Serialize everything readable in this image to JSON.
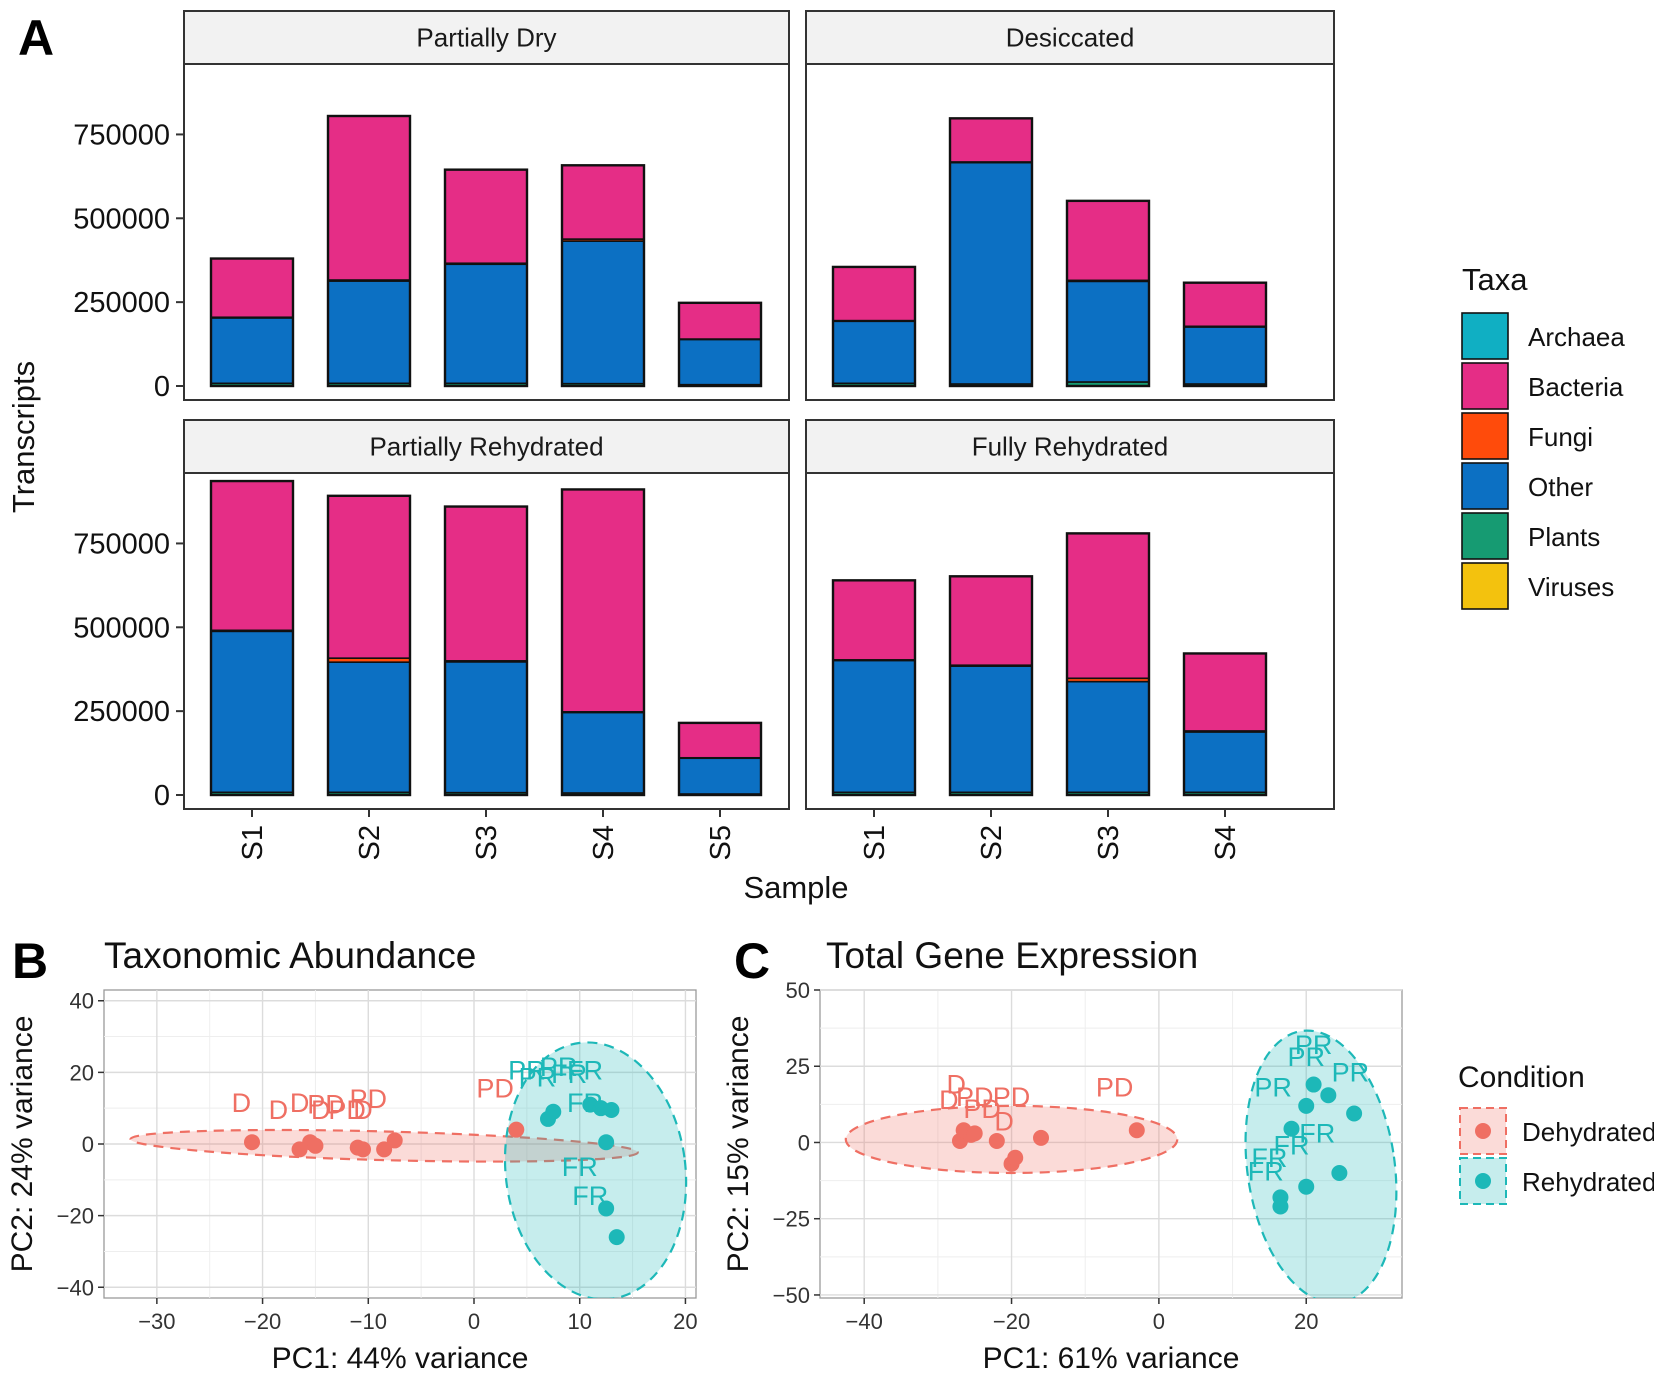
{
  "panel_labels": {
    "a": "A",
    "b": "B",
    "c": "C"
  },
  "taxa_colors": {
    "Archaea": "#10AFC3",
    "Bacteria": "#E52D86",
    "Fungi": "#FF4B0B",
    "Other": "#0C70C3",
    "Plants": "#169B72",
    "Viruses": "#F3C20E"
  },
  "condition_colors": {
    "Dehydrated": "#EF6F63",
    "Rehydrated": "#1DB8B8"
  },
  "chart_data": [
    {
      "id": "A",
      "type": "bar",
      "stacked": true,
      "ylabel": "Transcripts",
      "xlabel": "Sample",
      "ylim": [
        0,
        960000
      ],
      "yticks": [
        0,
        250000,
        500000,
        750000
      ],
      "ytick_labels": [
        "0",
        "250000",
        "500000",
        "750000"
      ],
      "legend": {
        "title": "Taxa",
        "position": "right",
        "entries": [
          "Archaea",
          "Bacteria",
          "Fungi",
          "Other",
          "Plants",
          "Viruses"
        ]
      },
      "facets": [
        {
          "title": "Partially Dry",
          "categories": [
            "S1",
            "S2",
            "S3",
            "S4",
            "S5"
          ],
          "series": [
            {
              "name": "Plants",
              "values": [
                8000,
                8000,
                8000,
                7000,
                4000
              ]
            },
            {
              "name": "Other",
              "values": [
                195000,
                305000,
                355000,
                425000,
                135000
              ]
            },
            {
              "name": "Fungi",
              "values": [
                2000,
                3000,
                3000,
                6000,
                1000
              ]
            },
            {
              "name": "Bacteria",
              "values": [
                175000,
                489000,
                279000,
                220000,
                108000
              ]
            }
          ]
        },
        {
          "title": "Desiccated",
          "categories": [
            "S1",
            "S2",
            "S3",
            "S4"
          ],
          "series": [
            {
              "name": "Plants",
              "values": [
                8000,
                6000,
                12000,
                6000
              ]
            },
            {
              "name": "Other",
              "values": [
                185000,
                660000,
                300000,
                170000
              ]
            },
            {
              "name": "Fungi",
              "values": [
                2000,
                2000,
                3000,
                2000
              ]
            },
            {
              "name": "Bacteria",
              "values": [
                160000,
                130000,
                237000,
                130000
              ]
            }
          ]
        },
        {
          "title": "Partially Rehydrated",
          "categories": [
            "S1",
            "S2",
            "S3",
            "S4",
            "S5"
          ],
          "series": [
            {
              "name": "Plants",
              "values": [
                8000,
                8000,
                7000,
                6000,
                3000
              ]
            },
            {
              "name": "Other",
              "values": [
                480000,
                388000,
                390000,
                240000,
                107000
              ]
            },
            {
              "name": "Fungi",
              "values": [
                3000,
                12000,
                3000,
                2000,
                1000
              ]
            },
            {
              "name": "Bacteria",
              "values": [
                445000,
                484000,
                460000,
                663000,
                104000
              ]
            }
          ]
        },
        {
          "title": "Fully Rehydrated",
          "categories": [
            "S1",
            "S2",
            "S3",
            "S4"
          ],
          "series": [
            {
              "name": "Plants",
              "values": [
                8000,
                8000,
                8000,
                8000
              ]
            },
            {
              "name": "Other",
              "values": [
                393000,
                376000,
                330000,
                180000
              ]
            },
            {
              "name": "Fungi",
              "values": [
                2000,
                3000,
                10000,
                3000
              ]
            },
            {
              "name": "Bacteria",
              "values": [
                237000,
                265000,
                432000,
                231000
              ]
            }
          ]
        }
      ]
    },
    {
      "id": "B",
      "type": "scatter",
      "title": "Taxonomic Abundance",
      "xlabel": "PC1: 44% variance",
      "ylabel": "PC2: 24% variance",
      "xlim": [
        -35,
        21
      ],
      "ylim": [
        -43,
        43
      ],
      "xticks": [
        -30,
        -20,
        -10,
        0,
        10,
        20
      ],
      "yticks": [
        -40,
        -20,
        0,
        20,
        40
      ],
      "series": [
        {
          "name": "Dehydrated",
          "points": [
            [
              -21,
              0.5
            ],
            [
              -16.5,
              -1.5
            ],
            [
              -15.5,
              0.5
            ],
            [
              -15,
              -0.5
            ],
            [
              -11,
              -1
            ],
            [
              -10.5,
              -1.5
            ],
            [
              -8.5,
              -1.5
            ],
            [
              -7.5,
              1
            ],
            [
              4,
              4
            ]
          ]
        },
        {
          "name": "Rehydrated",
          "points": [
            [
              7,
              7
            ],
            [
              7.5,
              9
            ],
            [
              11,
              11
            ],
            [
              12,
              10
            ],
            [
              13,
              9.5
            ],
            [
              12.5,
              0.5
            ],
            [
              12.5,
              -18
            ],
            [
              13.5,
              -26
            ]
          ]
        }
      ],
      "labels": [
        {
          "text": "D",
          "x": -22,
          "y": 9,
          "group": "Dehydrated"
        },
        {
          "text": "D",
          "x": -16.5,
          "y": 9,
          "group": "Dehydrated"
        },
        {
          "text": "PD",
          "x": -14,
          "y": 8.5,
          "group": "Dehydrated"
        },
        {
          "text": "PD",
          "x": -10,
          "y": 10,
          "group": "Dehydrated"
        },
        {
          "text": "D",
          "x": -18.5,
          "y": 7,
          "group": "Dehydrated"
        },
        {
          "text": "PD",
          "x": -12,
          "y": 7,
          "group": "Dehydrated"
        },
        {
          "text": "D",
          "x": -14.5,
          "y": 7,
          "group": "Dehydrated"
        },
        {
          "text": "D",
          "x": -10.5,
          "y": 7,
          "group": "Dehydrated"
        },
        {
          "text": "PD",
          "x": 2,
          "y": 13,
          "group": "Dehydrated"
        },
        {
          "text": "PR",
          "x": 5,
          "y": 18,
          "group": "Rehydrated"
        },
        {
          "text": "PR",
          "x": 8,
          "y": 19,
          "group": "Rehydrated"
        },
        {
          "text": "FR",
          "x": 10.5,
          "y": 18,
          "group": "Rehydrated"
        },
        {
          "text": "PR",
          "x": 6,
          "y": 16,
          "group": "Rehydrated"
        },
        {
          "text": "FR",
          "x": 9,
          "y": 17,
          "group": "Rehydrated"
        },
        {
          "text": "FR",
          "x": 10.5,
          "y": 9,
          "group": "Rehydrated"
        },
        {
          "text": "FR",
          "x": 10,
          "y": -9,
          "group": "Rehydrated"
        },
        {
          "text": "FR",
          "x": 11,
          "y": -17,
          "group": "Rehydrated"
        }
      ],
      "ellipses": [
        {
          "group": "Dehydrated",
          "cx": -8.5,
          "cy": -0.5,
          "rx": 24,
          "ry": 4,
          "angle_deg": 1.5
        },
        {
          "group": "Rehydrated",
          "cx": 11.5,
          "cy": -7.5,
          "rx": 8.5,
          "ry": 36,
          "angle_deg": -7
        }
      ]
    },
    {
      "id": "C",
      "type": "scatter",
      "title": "Total Gene Expression",
      "xlabel": "PC1: 61% variance",
      "ylabel": "PC2: 15% variance",
      "xlim": [
        -46,
        33
      ],
      "ylim": [
        -51,
        50
      ],
      "xticks": [
        -40,
        -20,
        0,
        20
      ],
      "yticks": [
        -50,
        -25,
        0,
        25,
        50
      ],
      "legend": {
        "title": "Condition",
        "position": "right",
        "entries": [
          "Dehydrated",
          "Rehydrated"
        ]
      },
      "series": [
        {
          "name": "Dehydrated",
          "points": [
            [
              -27,
              0.5
            ],
            [
              -26.5,
              4
            ],
            [
              -25.5,
              2.5
            ],
            [
              -25,
              3
            ],
            [
              -22,
              0.5
            ],
            [
              -20,
              -7
            ],
            [
              -19.5,
              -5
            ],
            [
              -16,
              1.5
            ],
            [
              -3,
              4
            ]
          ]
        },
        {
          "name": "Rehydrated",
          "points": [
            [
              16.5,
              -18
            ],
            [
              16.5,
              -21
            ],
            [
              18,
              4.5
            ],
            [
              20,
              12
            ],
            [
              21,
              19
            ],
            [
              23,
              15.5
            ],
            [
              20,
              -14.5
            ],
            [
              24.5,
              -10
            ],
            [
              26.5,
              9.5
            ]
          ]
        }
      ],
      "labels": [
        {
          "text": "D",
          "x": -27.5,
          "y": 16,
          "group": "Dehydrated"
        },
        {
          "text": "PD",
          "x": -25,
          "y": 12,
          "group": "Dehydrated"
        },
        {
          "text": "PD",
          "x": -20,
          "y": 12,
          "group": "Dehydrated"
        },
        {
          "text": "D",
          "x": -28.5,
          "y": 11,
          "group": "Dehydrated"
        },
        {
          "text": "PD",
          "x": -24,
          "y": 8,
          "group": "Dehydrated"
        },
        {
          "text": "D",
          "x": -21,
          "y": 4,
          "group": "Dehydrated"
        },
        {
          "text": "PD",
          "x": -6,
          "y": 15,
          "group": "Dehydrated"
        },
        {
          "text": "PR",
          "x": 21,
          "y": 29,
          "group": "Rehydrated"
        },
        {
          "text": "PR",
          "x": 20,
          "y": 25,
          "group": "Rehydrated"
        },
        {
          "text": "PR",
          "x": 26,
          "y": 20,
          "group": "Rehydrated"
        },
        {
          "text": "PR",
          "x": 15.5,
          "y": 15,
          "group": "Rehydrated"
        },
        {
          "text": "FR",
          "x": 21.5,
          "y": 0,
          "group": "Rehydrated"
        },
        {
          "text": "FR",
          "x": 18,
          "y": -4,
          "group": "Rehydrated"
        },
        {
          "text": "FR",
          "x": 15,
          "y": -8,
          "group": "Rehydrated"
        },
        {
          "text": "FR",
          "x": 14.5,
          "y": -12.5,
          "group": "Rehydrated"
        }
      ],
      "ellipses": [
        {
          "group": "Dehydrated",
          "cx": -20,
          "cy": 1,
          "rx": 22.5,
          "ry": 11,
          "angle_deg": 0
        },
        {
          "group": "Rehydrated",
          "cx": 22,
          "cy": -8,
          "rx": 10,
          "ry": 45,
          "angle_deg": -8
        }
      ]
    }
  ]
}
